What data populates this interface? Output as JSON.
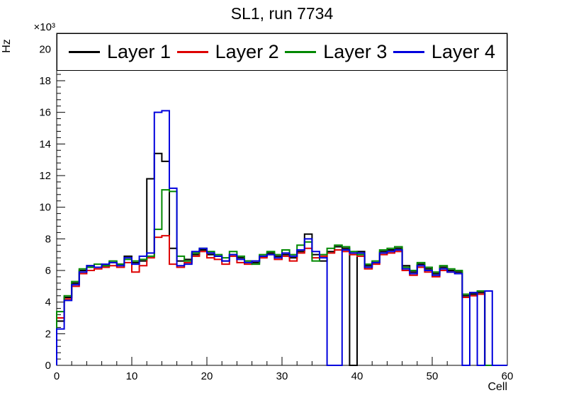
{
  "page_title": "SL1, run 7734",
  "chart_data": {
    "type": "line",
    "style": "step-histogram",
    "title": "SL1, run 7734",
    "xlabel": "Cell",
    "ylabel": "Hz",
    "y_axis_multiplier": "×10³",
    "y_values_unit": "10^3 Hz",
    "xlim": [
      0,
      60
    ],
    "ylim": [
      0,
      21
    ],
    "x_ticks": [
      0,
      10,
      20,
      30,
      40,
      50,
      60
    ],
    "y_ticks": [
      0,
      2,
      4,
      6,
      8,
      10,
      12,
      14,
      16,
      18,
      20
    ],
    "bin_width": 1,
    "grid": false,
    "legend_position": "top-inside-frame",
    "series": [
      {
        "name": "Layer 1",
        "color": "#000000",
        "values": [
          2.8,
          4.3,
          5.2,
          6.0,
          6.3,
          6.2,
          6.3,
          6.5,
          6.4,
          6.9,
          6.5,
          6.6,
          11.8,
          13.4,
          12.9,
          7.4,
          6.6,
          6.7,
          7.0,
          7.3,
          7.0,
          6.9,
          6.6,
          7.0,
          6.8,
          6.6,
          6.5,
          6.9,
          7.1,
          6.9,
          7.0,
          6.8,
          7.2,
          8.3,
          7.0,
          6.6,
          7.2,
          7.5,
          7.4,
          0.0,
          7.2,
          6.3,
          6.5,
          7.2,
          7.3,
          7.4,
          6.3,
          5.9,
          6.4,
          6.1,
          5.8,
          6.2,
          6.0,
          5.9,
          4.4,
          4.5,
          4.6,
          0.0,
          0.0,
          0.0
        ]
      },
      {
        "name": "Layer 2",
        "color": "#dd0000",
        "values": [
          3.0,
          4.2,
          5.0,
          5.8,
          6.0,
          6.1,
          6.2,
          6.3,
          6.2,
          6.5,
          5.9,
          6.3,
          6.8,
          8.1,
          8.2,
          6.4,
          6.2,
          6.5,
          6.9,
          7.2,
          6.8,
          6.7,
          6.4,
          6.9,
          6.5,
          6.4,
          6.6,
          6.8,
          7.0,
          6.7,
          6.9,
          6.6,
          7.1,
          7.4,
          6.8,
          6.9,
          7.1,
          7.3,
          7.2,
          7.0,
          6.9,
          6.1,
          6.4,
          7.0,
          7.1,
          7.2,
          6.0,
          5.7,
          6.2,
          5.9,
          5.6,
          6.0,
          5.9,
          5.8,
          4.3,
          4.4,
          4.5,
          0.0,
          0.0,
          0.0
        ]
      },
      {
        "name": "Layer 3",
        "color": "#008800",
        "values": [
          3.4,
          4.4,
          5.3,
          6.1,
          6.2,
          6.4,
          6.3,
          6.6,
          6.4,
          6.7,
          6.6,
          6.7,
          6.9,
          8.6,
          11.1,
          11.0,
          6.9,
          6.6,
          7.1,
          7.4,
          7.2,
          7.0,
          6.8,
          7.2,
          6.9,
          6.6,
          6.4,
          7.0,
          7.2,
          7.0,
          7.3,
          7.0,
          7.6,
          7.8,
          6.6,
          7.0,
          7.4,
          7.6,
          7.5,
          7.2,
          7.0,
          6.4,
          6.6,
          7.3,
          7.4,
          7.5,
          6.2,
          6.0,
          6.5,
          6.2,
          5.9,
          6.3,
          6.1,
          6.0,
          4.5,
          4.6,
          4.7,
          0.0,
          0.0,
          0.0
        ]
      },
      {
        "name": "Layer 4",
        "color": "#0000dd",
        "values": [
          2.3,
          4.1,
          5.1,
          5.9,
          6.3,
          6.2,
          6.4,
          6.5,
          6.3,
          6.8,
          6.4,
          6.9,
          7.1,
          16.0,
          16.1,
          11.2,
          6.3,
          6.4,
          7.2,
          7.4,
          7.1,
          6.9,
          6.6,
          7.0,
          6.7,
          6.5,
          6.6,
          6.9,
          7.0,
          6.8,
          7.1,
          6.9,
          7.3,
          8.0,
          7.2,
          6.8,
          0.0,
          0.0,
          7.3,
          7.1,
          7.1,
          6.2,
          6.5,
          7.1,
          7.2,
          7.3,
          6.1,
          5.8,
          6.3,
          6.0,
          5.7,
          6.1,
          5.9,
          5.8,
          0.0,
          4.6,
          0.0,
          4.7,
          0.0,
          0.0
        ]
      }
    ]
  }
}
